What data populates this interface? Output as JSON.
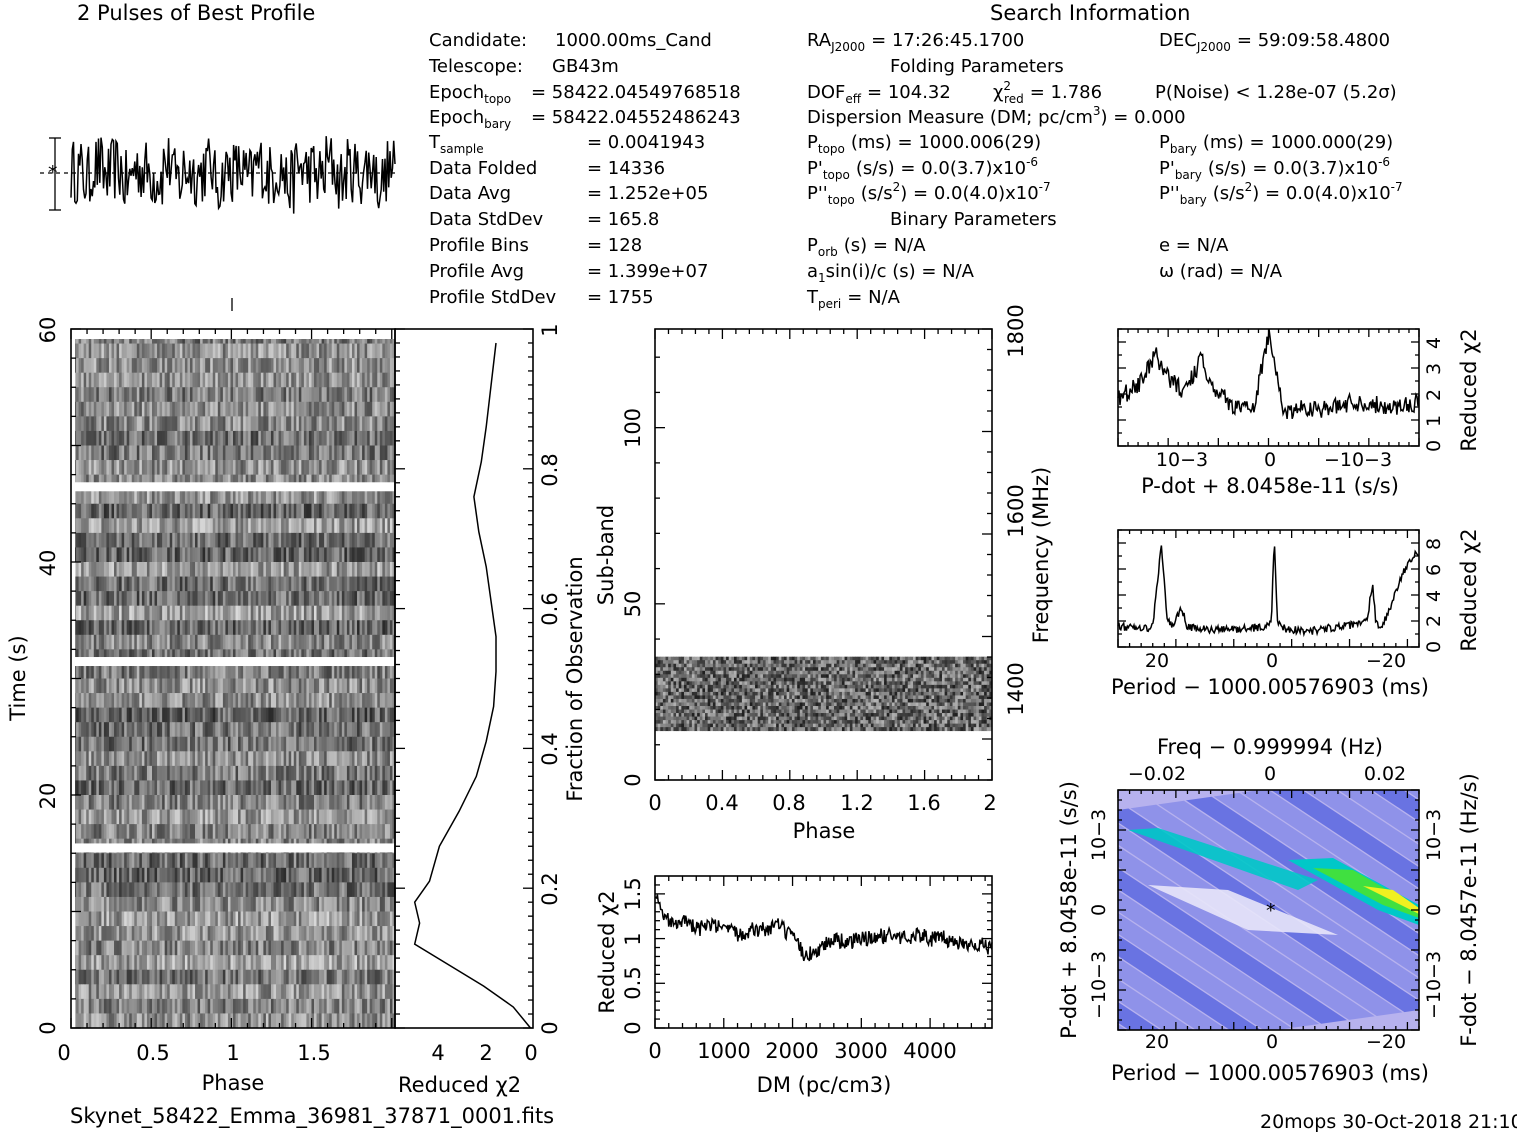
{
  "header": {
    "pulses_title": "2 Pulses of Best Profile",
    "search_title": "Search Information",
    "footer_file": "Skynet_58422_Emma_36981_37871_0001.fits",
    "footer_stamp": "20mops 30-Oct-2018 21:10"
  },
  "info_left": {
    "candidate_label": "Candidate:",
    "candidate_value": "1000.00ms_Cand",
    "telescope_label": "Telescope:",
    "telescope_value": "GB43m",
    "epoch_topo_label": "Epoch",
    "epoch_topo_sub": "topo",
    "epoch_topo_value": "= 58422.04549768518",
    "epoch_bary_label": "Epoch",
    "epoch_bary_sub": "bary",
    "epoch_bary_value": "= 58422.04552486243",
    "tsample_label": "T",
    "tsample_sub": "sample",
    "tsample_value": "=   0.0041943",
    "data_folded_label": "Data Folded",
    "data_folded_value": "=   14336",
    "data_avg_label": "Data Avg",
    "data_avg_value": "=   1.252e+05",
    "data_std_label": "Data StdDev",
    "data_std_value": "=   165.8",
    "prof_bins_label": "Profile Bins",
    "prof_bins_value": "=   128",
    "prof_avg_label": "Profile Avg",
    "prof_avg_value": "=   1.399e+07",
    "prof_std_label": "Profile StdDev",
    "prof_std_value": "=   1755"
  },
  "info_mid": {
    "ra_label": "RA",
    "ra_sub": "J2000",
    "ra_value": "= 17:26:45.1700",
    "folding_title": "Folding Parameters",
    "dof_label": "DOF",
    "dof_sub": "eff",
    "dof_value": "= 104.32",
    "chi_label": "χ",
    "chi_sup": "2",
    "chi_sub": "red",
    "chi_value": "= 1.786",
    "dm_line": "Dispersion Measure (DM; pc/cm",
    "dm_sup": "3",
    "dm_end": ") = 0.000",
    "ptopo_label": "P",
    "ptopo_sub": "topo",
    "ptopo_value": "(ms) =  1000.006(29)",
    "pdtopo_label": "P'",
    "pdtopo_sub": "topo",
    "pdtopo_value": "(s/s) = 0.0(3.7)x10",
    "pdtopo_exp": "-6",
    "pddtopo_label": "P''",
    "pddtopo_sub": "topo",
    "pddtopo_value": "(s/s",
    "pddtopo_sup": "2",
    "pddtopo_end": ") = 0.0(4.0)x10",
    "pddtopo_exp": "-7",
    "binary_title": "Binary Parameters",
    "porb_label": "P",
    "porb_sub": "orb",
    "porb_value": "(s) = N/A",
    "a1_label": "a",
    "a1_sub": "1",
    "a1_value": "sin(i)/c (s) = N/A",
    "tperi_label": "T",
    "tperi_sub": "peri",
    "tperi_value": "= N/A"
  },
  "info_right": {
    "dec_label": "DEC",
    "dec_sub": "J2000",
    "dec_value": "= 59:09:58.4800",
    "pnoise": "P(Noise) < 1.28e-07  (5.2σ)",
    "pbary_label": "P",
    "pbary_sub": "bary",
    "pbary_value": "(ms) =  1000.000(29)",
    "pdbary_label": "P'",
    "pdbary_sub": "bary",
    "pdbary_value": "(s/s) = 0.0(3.7)x10",
    "pdbary_exp": "-6",
    "pddbary_label": "P''",
    "pddbary_sub": "bary",
    "pddbary_value": "(s/s",
    "pddbary_sup": "2",
    "pddbary_end": ") = 0.0(4.0)x10",
    "pddbary_exp": "-7",
    "e_value": "e = N/A",
    "omega_value": "ω (rad) = N/A"
  },
  "colors": {
    "ink": "#000000",
    "bg": "#ffffff",
    "contour_low": "#2a3fd8",
    "contour_mid": "#00c8c8",
    "contour_high": "#f0f020",
    "contour_bg": "#b7b2ee"
  },
  "chart_data": [
    {
      "type": "line",
      "name": "profile",
      "title": "2 Pulses of Best Profile",
      "x": [
        0,
        0.0625,
        0.125,
        0.1875,
        0.25,
        0.3125,
        0.375,
        0.4375,
        0.5,
        0.5625,
        0.625,
        0.6875,
        0.75,
        0.8125,
        0.875,
        0.9375,
        1.0,
        1.0625,
        1.125,
        1.1875,
        1.25,
        1.3125,
        1.375,
        1.4375,
        1.5,
        1.5625,
        1.625,
        1.6875,
        1.75,
        1.8125,
        1.875,
        1.9375
      ],
      "values": [
        0.4,
        -1.2,
        1.6,
        -0.6,
        0.9,
        -2.1,
        1.1,
        0.3,
        -0.8,
        2.0,
        -1.5,
        0.7,
        -0.2,
        1.4,
        -1.9,
        0.5,
        0.4,
        -1.2,
        1.6,
        -0.6,
        0.9,
        -2.1,
        1.1,
        0.3,
        -0.8,
        2.0,
        -1.5,
        0.7,
        -0.2,
        1.4,
        -1.9,
        0.5
      ]
    },
    {
      "type": "heatmap",
      "name": "time-phase",
      "xlabel": "Phase",
      "ylabel": "Time (s)",
      "xlim": [
        0,
        2
      ],
      "ylim": [
        0,
        60
      ],
      "xticks": [
        "0",
        "0.5",
        "1",
        "1.5"
      ],
      "yticks": [
        "0",
        "20",
        "40",
        "60"
      ],
      "gaps_s": [
        15.5,
        31.5,
        46.5
      ]
    },
    {
      "type": "line",
      "name": "reduced-chi2-time",
      "xlabel": "Reduced χ2",
      "xticks": [
        "4",
        "2",
        "0"
      ],
      "y2label": "Fraction of Observation",
      "y2ticks": [
        "0",
        "0.2",
        "0.4",
        "0.6",
        "0.8",
        "1"
      ],
      "x": [
        0.1,
        0.8,
        2.0,
        3.4,
        4.8,
        4.6,
        4.8,
        4.2,
        3.8,
        3.0,
        2.3,
        1.9,
        1.6,
        1.5,
        1.5,
        1.7,
        1.9,
        2.2,
        2.4,
        2.1,
        1.9,
        1.7,
        1.5
      ],
      "y": [
        0.0,
        0.03,
        0.06,
        0.09,
        0.12,
        0.15,
        0.18,
        0.21,
        0.26,
        0.31,
        0.36,
        0.41,
        0.46,
        0.51,
        0.56,
        0.61,
        0.66,
        0.71,
        0.76,
        0.81,
        0.86,
        0.92,
        0.98
      ]
    },
    {
      "type": "heatmap",
      "name": "subband-phase",
      "xlabel": "Phase",
      "ylabel": "Sub-band",
      "y2label": "Frequency (MHz)",
      "xlim": [
        0,
        2
      ],
      "ylim": [
        0,
        128
      ],
      "xticks": [
        "0",
        "0.4",
        "0.8",
        "1.2",
        "1.6",
        "2"
      ],
      "yticks": [
        "0",
        "50",
        "100"
      ],
      "y2ticks": [
        "1400",
        "1600",
        "1800"
      ],
      "band_subbands": [
        14,
        35
      ]
    },
    {
      "type": "line",
      "name": "dm-chi2",
      "xlabel": "DM (pc/cm3)",
      "ylabel": "Reduced χ2",
      "xlim": [
        0,
        4900
      ],
      "ylim": [
        0,
        1.7
      ],
      "xticks": [
        "0",
        "1000",
        "2000",
        "3000",
        "4000"
      ],
      "yticks": [
        "0",
        "0.5",
        "1",
        "1.5"
      ],
      "x": [
        0,
        100,
        200,
        400,
        600,
        800,
        1000,
        1200,
        1400,
        1600,
        1800,
        2000,
        2200,
        2400,
        2600,
        2800,
        3000,
        3200,
        3400,
        3600,
        3800,
        4000,
        4200,
        4400,
        4600,
        4900
      ],
      "values": [
        1.55,
        1.3,
        1.2,
        1.2,
        1.1,
        1.15,
        1.1,
        1.05,
        1.1,
        1.1,
        1.15,
        1.0,
        0.8,
        0.9,
        1.0,
        0.95,
        1.0,
        1.0,
        1.05,
        1.0,
        1.05,
        1.0,
        1.0,
        0.95,
        0.95,
        0.9
      ]
    },
    {
      "type": "line",
      "name": "pdot-chi2",
      "xlabel": "P-dot + 8.0458e-11 (s/s)",
      "ylabel": "Reduced χ2",
      "ylim": [
        0,
        4.5
      ],
      "xticks": [
        "10−3",
        "0",
        "−10−3"
      ],
      "yticks": [
        "0",
        "1",
        "2",
        "3",
        "4"
      ],
      "x": [
        -1,
        -0.85,
        -0.7,
        -0.55,
        -0.4,
        -0.25,
        -0.1,
        0,
        0.1,
        0.25,
        0.35,
        0.45,
        0.55,
        0.65,
        0.75,
        0.85,
        1
      ],
      "values": [
        1.7,
        1.5,
        1.6,
        1.7,
        1.4,
        1.5,
        1.3,
        4.3,
        1.4,
        1.6,
        2.2,
        3.3,
        2.1,
        2.5,
        3.5,
        2.4,
        1.8
      ]
    },
    {
      "type": "line",
      "name": "period-chi2",
      "xlabel": "Period − 1000.00576903 (ms)",
      "ylabel": "Reduced χ2",
      "ylim": [
        0,
        9
      ],
      "xticks": [
        "20",
        "0",
        "−20"
      ],
      "yticks": [
        "0",
        "2",
        "4",
        "6",
        "8"
      ],
      "x": [
        27,
        24,
        21,
        19.5,
        18.5,
        17.5,
        16,
        15,
        13,
        10,
        6,
        3,
        1.5,
        0.5,
        0,
        -0.5,
        -2,
        -6,
        -10,
        -14,
        -16,
        -17,
        -17.5,
        -18.5,
        -20,
        -22,
        -24.5
      ],
      "values": [
        1.6,
        1.4,
        1.5,
        8.0,
        2.0,
        1.6,
        3.0,
        1.5,
        1.4,
        1.3,
        1.4,
        1.5,
        1.5,
        2.0,
        8.5,
        2.0,
        1.4,
        1.2,
        1.5,
        1.7,
        2.0,
        5.0,
        2.0,
        1.5,
        3.0,
        5.5,
        7.2
      ]
    },
    {
      "type": "heatmap",
      "name": "period-pdot",
      "title": "Freq − 0.999994 (Hz)",
      "xlabel": "Period − 1000.00576903 (ms)",
      "ylabel": "P-dot + 8.0458e-11 (s/s)",
      "y2label": "F-dot − 8.0457e-11 (Hz/s)",
      "xticks": [
        "20",
        "0",
        "−20"
      ],
      "x2ticks": [
        "−0.02",
        "0",
        "0.02"
      ],
      "yticks": [
        "10−3",
        "0",
        "−10−3"
      ],
      "y2ticks": [
        "−10−3",
        "0",
        "10−3"
      ]
    }
  ]
}
